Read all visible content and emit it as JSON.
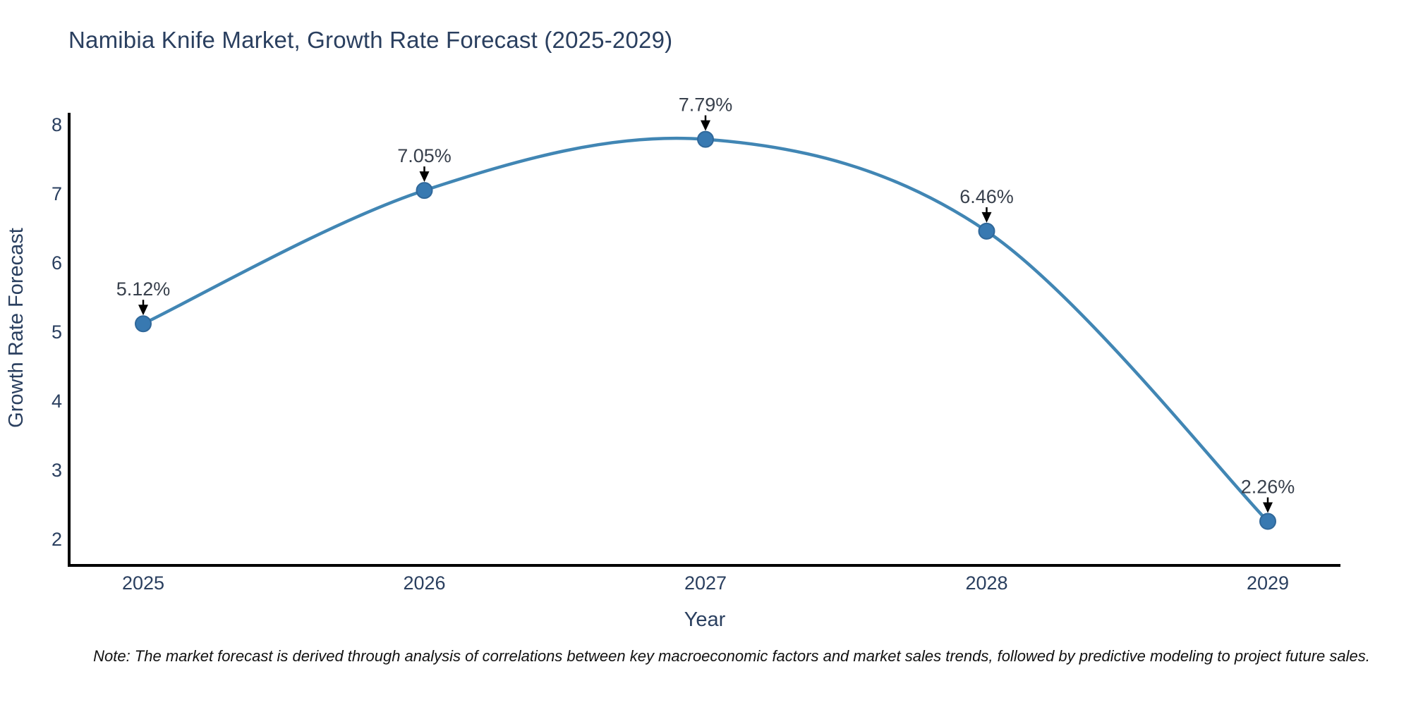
{
  "chart_data": {
    "type": "line",
    "title": "Namibia Knife Market, Growth Rate Forecast (2025-2029)",
    "xlabel": "Year",
    "ylabel": "Growth Rate Forecast",
    "x": [
      "2025",
      "2026",
      "2027",
      "2028",
      "2029"
    ],
    "series": [
      {
        "name": "Growth Rate Forecast",
        "values": [
          5.12,
          7.05,
          7.79,
          6.46,
          2.26
        ]
      }
    ],
    "point_labels": [
      "5.12%",
      "7.05%",
      "7.79%",
      "6.46%",
      "2.26%"
    ],
    "yticks": [
      2,
      3,
      4,
      5,
      6,
      7,
      8
    ],
    "ylim": [
      2,
      8
    ],
    "grid": false,
    "legend": "none",
    "line_shape": "spline",
    "line_color": "#4186b4",
    "marker_color": "#3879b1",
    "marker_edge_color": "#30689a",
    "annotation_arrow_color": "#000000",
    "axis_color": "#000000",
    "text_color": "#2a3f5f",
    "note": "Note: The market forecast is derived through analysis of correlations between key macroeconomic factors and market sales trends, followed by predictive modeling to project future sales."
  }
}
